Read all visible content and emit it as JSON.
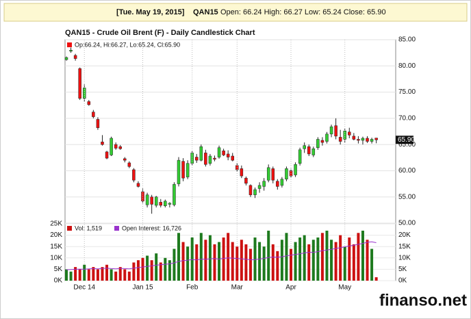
{
  "header": {
    "date_label": "[Tue. May 19, 2015]",
    "symbol": "QAN15",
    "quote": "Open: 66.24 High: 66.27 Low: 65.24 Close: 65.90"
  },
  "watermark": "finanso.net",
  "chart_data": [
    {
      "type": "candlestick",
      "title": "QAN15 - Crude Oil Brent (F) - Daily Candlestick Chart",
      "ohlc_label": "Op:66.24, Hi:66.27, Lo:65.24, Cl:65.90",
      "last_label": "65.90",
      "up_color": "#33cc33",
      "down_color": "#ee1111",
      "ylim": [
        50,
        85
      ],
      "yticks": [
        {
          "value": 85,
          "label": "85.00"
        },
        {
          "value": 80,
          "label": "80.00"
        },
        {
          "value": 75,
          "label": "75.00"
        },
        {
          "value": 70,
          "label": "70.00"
        },
        {
          "value": 65,
          "label": "65.00"
        },
        {
          "value": 60,
          "label": "60.00"
        },
        {
          "value": 55,
          "label": "55.00"
        },
        {
          "value": 50,
          "label": "50.00"
        }
      ],
      "grid": true,
      "open": [
        81.2,
        82.8,
        82.0,
        79.5,
        73.8,
        73.2,
        71.2,
        69.8,
        65.5,
        63.6,
        63.0,
        65.0,
        64.6,
        62.3,
        61.5,
        60.2,
        57.6,
        56.0,
        53.5,
        55.0,
        53.4,
        54.0,
        53.3,
        53.6,
        53.5,
        57.5,
        61.8,
        58.8,
        61.4,
        62.6,
        62.0,
        63.4,
        61.4,
        62.4,
        62.6,
        63.8,
        63.2,
        62.8,
        61.0,
        60.4,
        58.6,
        57.2,
        55.4,
        56.6,
        57.0,
        58.2,
        60.4,
        58.0,
        57.2,
        58.4,
        60.0,
        59.2,
        61.4,
        64.2,
        64.6,
        63.0,
        64.4,
        65.8,
        65.6,
        67.0,
        68.6,
        66.4,
        66.0,
        67.4,
        66.6,
        66.0,
        65.8,
        66.2,
        65.6,
        66.24
      ],
      "high": [
        81.8,
        83.5,
        82.3,
        79.7,
        76.5,
        73.5,
        71.6,
        70.2,
        66.8,
        63.8,
        66.5,
        65.4,
        64.9,
        62.6,
        61.8,
        60.5,
        58.0,
        56.6,
        55.8,
        55.4,
        55.2,
        54.6,
        54.5,
        54.0,
        57.8,
        62.6,
        62.4,
        62.0,
        63.8,
        63.2,
        65.0,
        64.0,
        63.2,
        62.9,
        64.8,
        64.2,
        63.9,
        63.4,
        61.5,
        61.0,
        58.9,
        57.4,
        56.8,
        57.8,
        58.6,
        61.2,
        60.8,
        58.4,
        58.8,
        60.8,
        60.4,
        61.6,
        64.4,
        65.4,
        65.0,
        64.6,
        66.4,
        66.4,
        67.4,
        68.8,
        70.0,
        67.8,
        68.0,
        68.2,
        67.2,
        66.6,
        66.5,
        66.6,
        66.3,
        66.27
      ],
      "low": [
        81.0,
        82.5,
        81.0,
        73.5,
        73.2,
        72.4,
        70.0,
        67.8,
        64.8,
        62.2,
        62.8,
        64.0,
        64.0,
        61.6,
        60.5,
        57.8,
        56.8,
        53.8,
        53.0,
        51.8,
        53.0,
        53.0,
        53.0,
        53.0,
        53.2,
        57.0,
        58.0,
        58.4,
        61.0,
        61.5,
        61.8,
        60.8,
        61.0,
        61.8,
        62.3,
        62.8,
        62.0,
        61.8,
        59.8,
        58.6,
        57.2,
        55.0,
        54.8,
        55.8,
        56.2,
        57.8,
        57.6,
        56.4,
        56.8,
        58.0,
        58.6,
        58.8,
        61.0,
        63.4,
        62.8,
        62.6,
        64.0,
        64.8,
        65.2,
        66.4,
        66.0,
        65.0,
        65.4,
        66.2,
        65.8,
        65.2,
        65.0,
        65.3,
        65.2,
        65.24
      ],
      "close": [
        81.6,
        83.0,
        81.4,
        73.8,
        75.8,
        72.6,
        70.3,
        68.2,
        65.0,
        62.4,
        66.2,
        64.3,
        64.2,
        62.0,
        60.8,
        58.2,
        57.0,
        54.2,
        55.4,
        53.6,
        55.0,
        53.4,
        54.2,
        53.8,
        57.4,
        62.0,
        58.6,
        61.4,
        63.4,
        62.0,
        64.6,
        61.2,
        62.8,
        62.2,
        64.4,
        63.0,
        62.6,
        62.0,
        60.2,
        59.0,
        57.6,
        55.4,
        56.4,
        57.2,
        58.0,
        60.6,
        58.2,
        57.0,
        58.4,
        60.4,
        59.0,
        61.2,
        64.0,
        64.8,
        63.2,
        64.2,
        66.0,
        65.4,
        67.0,
        68.4,
        66.6,
        65.6,
        67.6,
        66.8,
        66.0,
        65.8,
        66.2,
        65.6,
        66.0,
        65.9
      ]
    },
    {
      "type": "volume",
      "categories": [
        null,
        null,
        null,
        null,
        "Dec 14",
        null,
        null,
        null,
        null,
        null,
        null,
        null,
        null,
        null,
        null,
        null,
        null,
        "Jan 15",
        null,
        null,
        null,
        null,
        null,
        null,
        null,
        null,
        null,
        null,
        "Feb",
        null,
        null,
        null,
        null,
        null,
        null,
        null,
        null,
        null,
        "Mar",
        null,
        null,
        null,
        null,
        null,
        null,
        null,
        null,
        null,
        null,
        null,
        "Apr",
        null,
        null,
        null,
        null,
        null,
        null,
        null,
        null,
        null,
        null,
        null,
        "May",
        null,
        null,
        null,
        null,
        null,
        null,
        null
      ],
      "ylim": [
        0,
        25000
      ],
      "yticks": [
        {
          "value": 0,
          "label": "0K"
        },
        {
          "value": 5000,
          "label": "5K"
        },
        {
          "value": 10000,
          "label": "10K"
        },
        {
          "value": 15000,
          "label": "15K"
        },
        {
          "value": 20000,
          "label": "20K"
        },
        {
          "value": 25000,
          "label": "25K"
        }
      ],
      "series": [
        {
          "name": "Vol: 1,519",
          "color": "#cc1111",
          "values": [
            5000,
            4000,
            6000,
            5000,
            7000,
            5000,
            6000,
            5000,
            6000,
            7000,
            5000,
            4000,
            6000,
            5000,
            4000,
            8000,
            9000,
            10000,
            11000,
            9000,
            12000,
            8000,
            10000,
            9000,
            14000,
            21000,
            17000,
            15000,
            19000,
            16000,
            21000,
            18000,
            20000,
            16000,
            17000,
            19000,
            21000,
            17000,
            15000,
            18000,
            16000,
            14000,
            19000,
            17000,
            15000,
            22000,
            16000,
            13000,
            18000,
            21000,
            14000,
            17000,
            19000,
            20000,
            16000,
            18000,
            19000,
            21000,
            22000,
            18000,
            17000,
            20000,
            15000,
            19000,
            16000,
            21000,
            22000,
            18000,
            14000,
            1519
          ]
        },
        {
          "name": "Open Interest: 16,726",
          "color": "#9933cc",
          "values": [
            4800,
            4900,
            5000,
            5100,
            5000,
            5200,
            5300,
            5200,
            5400,
            5500,
            5300,
            5200,
            5400,
            5300,
            5200,
            5500,
            5800,
            6000,
            6300,
            6500,
            6800,
            7000,
            7200,
            7400,
            7800,
            8500,
            8800,
            9000,
            9300,
            9100,
            9500,
            9400,
            9600,
            9700,
            9500,
            9800,
            10000,
            9900,
            9700,
            9600,
            9400,
            9200,
            9300,
            9500,
            9800,
            10200,
            10400,
            10300,
            10500,
            10900,
            11200,
            11500,
            11800,
            12200,
            12500,
            12400,
            12800,
            13200,
            13500,
            13800,
            14200,
            14500,
            14900,
            15300,
            15600,
            16000,
            16400,
            16900,
            17100,
            16726
          ]
        }
      ]
    }
  ]
}
